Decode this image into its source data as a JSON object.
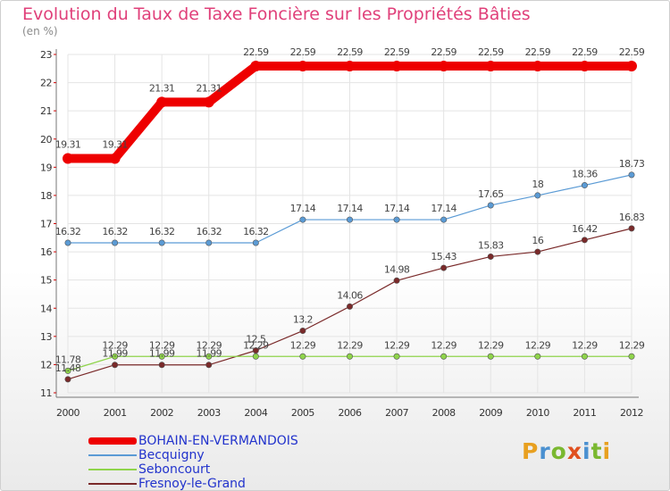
{
  "page": {
    "title": "Evolution du Taux de Taxe Foncière sur les Propriétés Bâties",
    "unit": "(en %)"
  },
  "brand": {
    "letters": [
      "P",
      "r",
      "o",
      "x",
      "i",
      "t",
      "i"
    ],
    "colors": [
      "#e8a020",
      "#4a90d0",
      "#7ab830",
      "#e05020",
      "#4a90d0",
      "#7ab830",
      "#e8a020"
    ]
  },
  "chart_data": {
    "type": "line",
    "title": "Evolution du Taux de Taxe Foncière sur les Propriétés Bâties",
    "ylabel": "(en %)",
    "xlabel": "",
    "ylim": [
      11,
      23
    ],
    "yticks": [
      "11",
      "12",
      "13",
      "14",
      "15",
      "16",
      "17",
      "18",
      "19",
      "20",
      "21",
      "22",
      "23"
    ],
    "x": [
      "2000",
      "2001",
      "2002",
      "2003",
      "2004",
      "2005",
      "2006",
      "2007",
      "2008",
      "2009",
      "2010",
      "2011",
      "2012"
    ],
    "grid": true,
    "legend_position": "bottom-left",
    "series": [
      {
        "name": "BOHAIN-EN-VERMANDOIS",
        "color": "#ee0000",
        "values": [
          19.31,
          19.31,
          21.31,
          21.31,
          22.59,
          22.59,
          22.59,
          22.59,
          22.59,
          22.59,
          22.59,
          22.59,
          22.59
        ],
        "labels": [
          "19.31",
          "19.31",
          "21.31",
          "21.31",
          "22.59",
          "22.59",
          "22.59",
          "22.59",
          "22.59",
          "22.59",
          "22.59",
          "22.59",
          "22.59"
        ]
      },
      {
        "name": "Becquigny",
        "color": "#5b9bd5",
        "values": [
          16.32,
          16.32,
          16.32,
          16.32,
          16.32,
          17.14,
          17.14,
          17.14,
          17.14,
          17.65,
          18,
          18.36,
          18.73
        ],
        "labels": [
          "16.32",
          "16.32",
          "16.32",
          "16.32",
          "16.32",
          "17.14",
          "17.14",
          "17.14",
          "17.14",
          "17.65",
          "18",
          "18.36",
          "18.73"
        ]
      },
      {
        "name": "Seboncourt",
        "color": "#8fd44b",
        "values": [
          11.78,
          12.29,
          12.29,
          12.29,
          12.29,
          12.29,
          12.29,
          12.29,
          12.29,
          12.29,
          12.29,
          12.29,
          12.29
        ],
        "labels": [
          "11.78",
          "12.29",
          "12.29",
          "12.29",
          "12.29",
          "12.29",
          "12.29",
          "12.29",
          "12.29",
          "12.29",
          "12.29",
          "12.29",
          "12.29"
        ]
      },
      {
        "name": "Fresnoy-le-Grand",
        "color": "#7a2a2a",
        "values": [
          11.48,
          11.99,
          11.99,
          11.99,
          12.5,
          13.2,
          14.06,
          14.98,
          15.43,
          15.83,
          16,
          16.42,
          16.83
        ],
        "labels": [
          "11.48",
          "11.99",
          "11.99",
          "11.99",
          "12.5",
          "13.2",
          "14.06",
          "14.98",
          "15.43",
          "15.83",
          "16",
          "16.42",
          "16.83"
        ]
      }
    ]
  }
}
